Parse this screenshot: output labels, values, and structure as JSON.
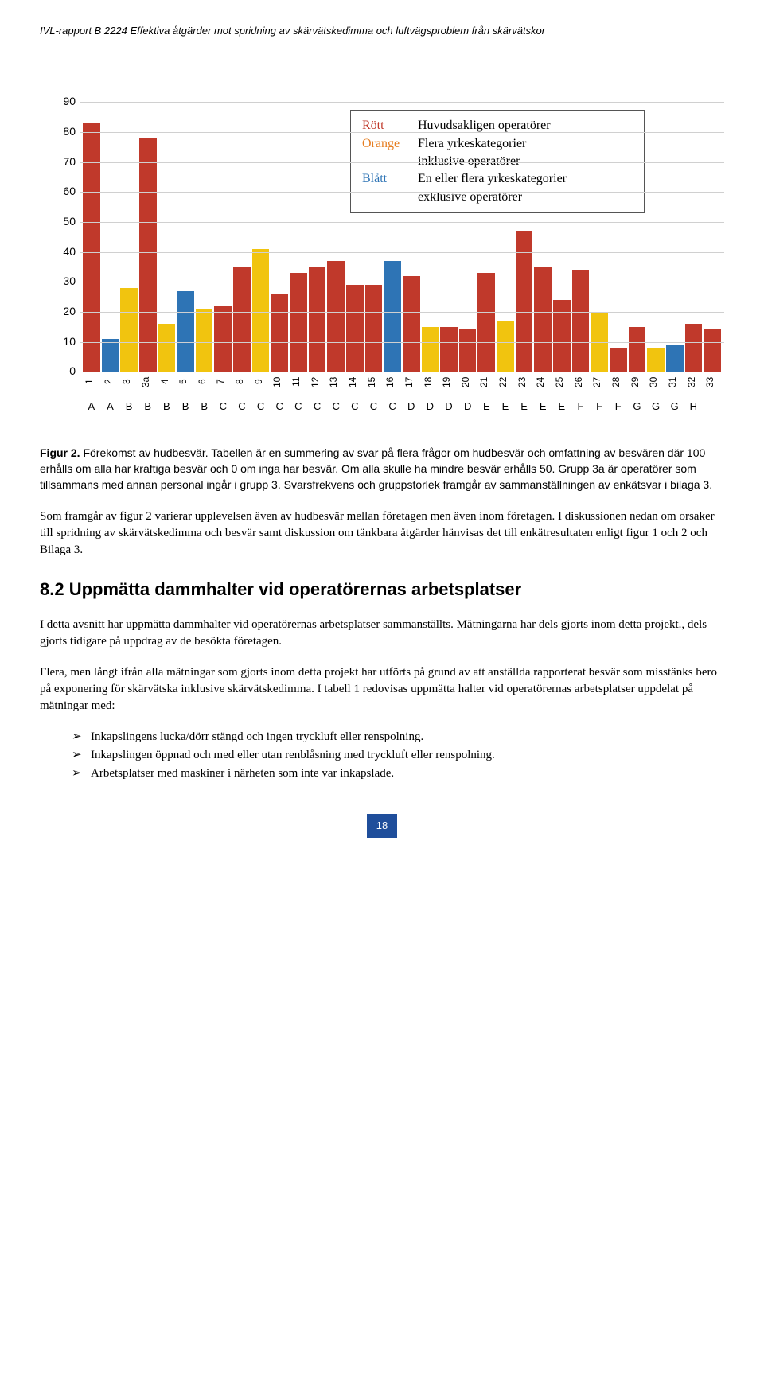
{
  "header": "IVL-rapport B 2224 Effektiva åtgärder mot spridning av skärvätskedimma och luftvägsproblem från skärvätskor",
  "chart": {
    "type": "bar",
    "ymax": 90,
    "ytick_step": 10,
    "grid_color": "#d0d0d0",
    "axis_color": "#888888",
    "background_color": "#ffffff",
    "colors": {
      "rott": "#c0392b",
      "orange": "#f1c40f",
      "blatt": "#2e74b5"
    },
    "categories": [
      "1",
      "2",
      "3",
      "3a",
      "4",
      "5",
      "6",
      "7",
      "8",
      "9",
      "10",
      "11",
      "12",
      "13",
      "14",
      "15",
      "16",
      "17",
      "18",
      "19",
      "20",
      "21",
      "22",
      "23",
      "24",
      "25",
      "26",
      "27",
      "28",
      "29",
      "30",
      "31",
      "32",
      "33"
    ],
    "groups": [
      "A",
      "A",
      "B",
      "B",
      "B",
      "B",
      "B",
      "C",
      "C",
      "C",
      "C",
      "C",
      "C",
      "C",
      "C",
      "C",
      "C",
      "D",
      "D",
      "D",
      "D",
      "E",
      "E",
      "E",
      "E",
      "E",
      "F",
      "F",
      "F",
      "G",
      "G",
      "G",
      "H",
      ""
    ],
    "values": [
      83,
      11,
      28,
      78,
      16,
      27,
      21,
      22,
      35,
      41,
      26,
      33,
      35,
      37,
      29,
      29,
      37,
      32,
      15,
      15,
      14,
      33,
      17,
      47,
      35,
      24,
      34,
      20,
      8,
      15,
      8,
      9,
      16,
      14
    ],
    "bar_color_keys": [
      "rott",
      "blatt",
      "orange",
      "rott",
      "orange",
      "blatt",
      "orange",
      "rott",
      "rott",
      "orange",
      "rott",
      "rott",
      "rott",
      "rott",
      "rott",
      "rott",
      "blatt",
      "rott",
      "orange",
      "rott",
      "rott",
      "rott",
      "orange",
      "rott",
      "rott",
      "rott",
      "rott",
      "orange",
      "rott",
      "rott",
      "orange",
      "blatt",
      "rott",
      "rott"
    ],
    "legend": [
      {
        "key": "Rött",
        "key_color": "#c0392b",
        "text": "Huvudsakligen operatörer"
      },
      {
        "key": "Orange",
        "key_color": "#e67e22",
        "text": "Flera yrkeskategorier"
      },
      {
        "key": "",
        "key_color": "#000000",
        "text": "inklusive operatörer"
      },
      {
        "key": "Blått",
        "key_color": "#2e74b5",
        "text": "En eller flera yrkeskategorier"
      },
      {
        "key": "",
        "key_color": "#000000",
        "text": "exklusive operatörer"
      }
    ]
  },
  "caption": {
    "lead": "Figur 2.",
    "text": " Förekomst av hudbesvär. Tabellen är en summering av svar på flera frågor om hudbesvär och omfattning av besvären där 100 erhålls om alla har kraftiga besvär och 0 om inga har besvär. Om alla skulle ha mindre besvär erhålls 50. Grupp 3a är operatörer som tillsammans med annan personal ingår i grupp 3. Svarsfrekvens och gruppstorlek framgår av sammanställningen av enkätsvar i bilaga 3."
  },
  "para1": "Som framgår av figur 2 varierar upplevelsen även av hudbesvär mellan företagen men även inom företagen. I diskussionen nedan om orsaker till spridning av skärvätskedimma och besvär samt diskussion om tänkbara åtgärder hänvisas det till enkätresultaten enligt figur 1 och 2 och Bilaga 3.",
  "section_heading": "8.2   Uppmätta dammhalter vid operatörernas arbetsplatser",
  "para2": "I detta avsnitt har uppmätta dammhalter vid operatörernas arbetsplatser sammanställts. Mätningarna har dels gjorts inom detta projekt., dels gjorts tidigare på uppdrag av de besökta företagen.",
  "para3": "Flera, men långt ifrån alla mätningar som gjorts inom detta projekt har utförts på grund av att anställda rapporterat besvär som misstänks bero på exponering för skärvätska inklusive skärvätskedimma. I tabell 1 redovisas uppmätta halter vid operatörernas arbetsplatser uppdelat på mätningar med:",
  "bullets": [
    "Inkapslingens lucka/dörr stängd och ingen tryckluft eller renspolning.",
    "Inkapslingen öppnad och med eller utan renblåsning med tryckluft eller renspolning.",
    "Arbetsplatser med maskiner i närheten som inte var inkapslade."
  ],
  "page_number": "18"
}
